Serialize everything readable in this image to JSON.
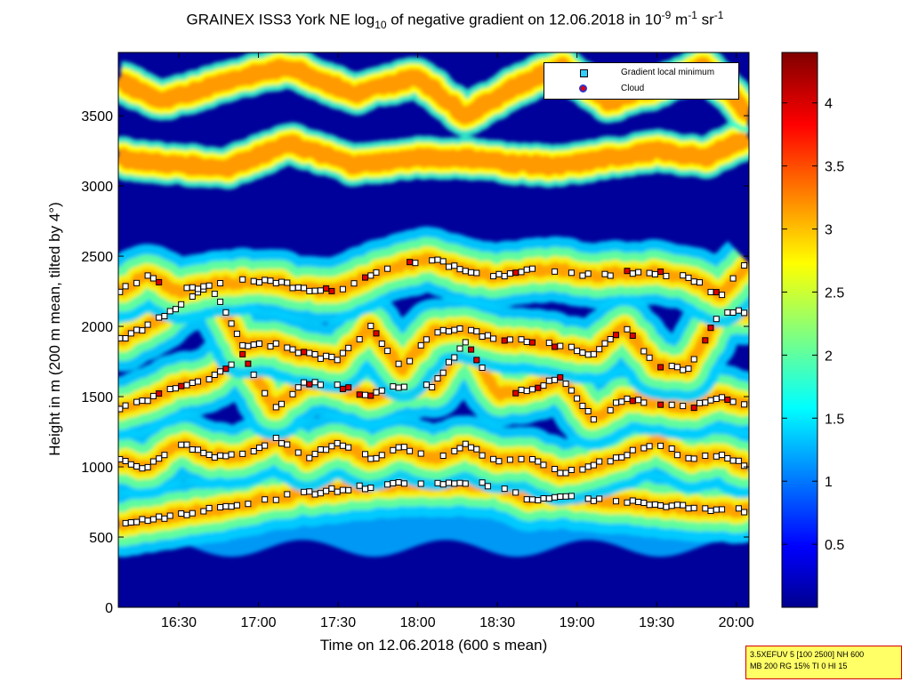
{
  "chart_data": {
    "type": "heatmap",
    "title": "GRAINEX ISS3 York NE log10 of negative gradient on 12.06.2018 in 10-9 m-1 sr-1",
    "title_parts": {
      "a": "GRAINEX ISS3 York NE log",
      "a_sub": "10",
      "b": " of negative gradient on 12.06.2018 in 10",
      "b_sup": "-9",
      "c": " m",
      "c_sup": "-1",
      "d": " sr",
      "d_sup": "-1"
    },
    "xlabel": "Time on 12.06.2018 (600 s mean)",
    "ylabel": "Height in m (200 m mean, tilted by 4°)",
    "x_ticks": [
      "16:30",
      "17:00",
      "17:30",
      "18:00",
      "18:30",
      "19:00",
      "19:30",
      "20:00"
    ],
    "x_tick_hours": [
      16.5,
      17.0,
      17.5,
      18.0,
      18.5,
      19.0,
      19.5,
      20.0
    ],
    "xlim_hours": [
      16.12,
      20.08
    ],
    "y_ticks": [
      "0",
      "500",
      "1000",
      "1500",
      "2000",
      "2500",
      "3000",
      "3500"
    ],
    "y_tick_values": [
      0,
      500,
      1000,
      1500,
      2000,
      2500,
      3000,
      3500
    ],
    "ylim": [
      0,
      3950
    ],
    "colorbar": {
      "ticks": [
        "0.5",
        "1",
        "1.5",
        "2",
        "2.5",
        "3",
        "3.5",
        "4"
      ],
      "tick_values": [
        0.5,
        1,
        1.5,
        2,
        2.5,
        3,
        3.5,
        4
      ],
      "range": [
        0,
        4.4
      ],
      "colormap": "jet"
    },
    "legend": {
      "placement": "top-right",
      "entries": [
        {
          "label": "Gradient local minimum",
          "marker": "square",
          "color": "#33ccff"
        },
        {
          "label": "Cloud",
          "marker": "circle",
          "color": "#e00000"
        }
      ]
    },
    "layers": [
      {
        "name": "boundary layer top",
        "x": [
          16.12,
          16.5,
          16.8,
          17.0,
          17.3,
          17.6,
          17.9,
          18.2,
          18.5,
          18.7,
          18.85,
          19.0,
          19.2,
          19.4,
          19.6,
          19.8,
          19.95
        ],
        "y": [
          590,
          660,
          710,
          760,
          810,
          850,
          880,
          880,
          870,
          760,
          790,
          780,
          760,
          740,
          720,
          700,
          690
        ]
      },
      {
        "name": "layer 1000 m",
        "x": [
          16.12,
          16.3,
          16.5,
          16.7,
          16.9,
          17.1,
          17.3,
          17.5,
          17.7,
          17.9,
          18.1,
          18.3,
          18.5,
          18.7,
          18.9,
          19.1,
          19.3,
          19.5,
          19.7,
          19.9,
          20.08
        ],
        "y": [
          1050,
          990,
          1170,
          1080,
          1080,
          1200,
          1060,
          1170,
          1060,
          1140,
          1060,
          1150,
          1040,
          1060,
          950,
          1010,
          1080,
          1180,
          1050,
          1080,
          1000
        ]
      },
      {
        "name": "layer 1500 m",
        "x": [
          16.12,
          16.3,
          16.5,
          16.7,
          16.9,
          17.1,
          17.3,
          17.5,
          17.7,
          17.9,
          18.1,
          18.3,
          18.5,
          18.7,
          18.9,
          19.1,
          19.3,
          19.5,
          19.7,
          19.9,
          20.08
        ],
        "y": [
          1420,
          1480,
          1580,
          1620,
          1800,
          1420,
          1600,
          1580,
          1500,
          1580,
          1580,
          1900,
          1520,
          1540,
          1640,
          1340,
          1480,
          1460,
          1420,
          1500,
          1440
        ]
      },
      {
        "name": "layer 2000 m",
        "x": [
          16.12,
          16.3,
          16.5,
          16.7,
          16.9,
          17.1,
          17.3,
          17.5,
          17.7,
          17.9,
          18.1,
          18.3,
          18.5,
          18.7,
          18.9,
          19.1,
          19.3,
          19.5,
          19.7,
          19.9,
          20.08
        ],
        "y": [
          1900,
          2000,
          2150,
          2300,
          1870,
          1870,
          1800,
          1760,
          2000,
          1700,
          1960,
          1980,
          1900,
          1900,
          1860,
          1800,
          2000,
          1720,
          1700,
          2110,
          2100
        ]
      },
      {
        "name": "layer 2400 m",
        "x": [
          16.12,
          16.3,
          16.5,
          16.7,
          16.9,
          17.1,
          17.3,
          17.5,
          17.7,
          17.9,
          18.1,
          18.3,
          18.5,
          18.7,
          18.9,
          19.1,
          19.3,
          19.5,
          19.7,
          19.9,
          20.08
        ],
        "y": [
          2250,
          2360,
          2250,
          2300,
          2320,
          2320,
          2260,
          2260,
          2360,
          2440,
          2480,
          2390,
          2360,
          2400,
          2400,
          2360,
          2380,
          2380,
          2350,
          2220,
          2460
        ]
      },
      {
        "name": "layer 3100 m",
        "x": [
          16.12,
          16.4,
          16.8,
          17.2,
          17.6,
          18.0,
          18.3,
          18.6,
          18.9,
          19.2,
          19.5,
          19.8,
          20.08
        ],
        "y": [
          3200,
          3160,
          3130,
          3300,
          3150,
          3200,
          3200,
          3160,
          3140,
          3200,
          3250,
          3200,
          3350
        ]
      },
      {
        "name": "layer 3600 m",
        "x": [
          16.12,
          16.4,
          16.8,
          17.2,
          17.6,
          18.0,
          18.3,
          18.6,
          18.9,
          19.2,
          19.5,
          19.8,
          20.08
        ],
        "y": [
          3750,
          3600,
          3750,
          3850,
          3650,
          3780,
          3500,
          3700,
          3850,
          3600,
          3700,
          3850,
          3500
        ]
      }
    ]
  },
  "info_box": {
    "line1": "3.5XEFUV 5 [100 2500] NH 600",
    "line2": "MB 200 RG 15% TI 0 HI 15"
  }
}
